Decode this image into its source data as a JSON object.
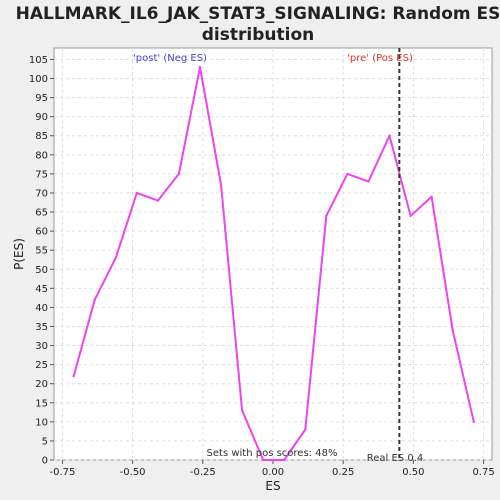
{
  "chart_data": {
    "type": "line",
    "title_lines": [
      "HALLMARK_IL6_JAK_STAT3_SIGNALING: Random ES",
      "distribution"
    ],
    "xlabel": "ES",
    "ylabel": "P(ES)",
    "xlim": [
      -0.78,
      0.78
    ],
    "ylim": [
      0,
      108
    ],
    "x_ticks": [
      -0.75,
      -0.5,
      -0.25,
      0.0,
      0.25,
      0.5,
      0.75
    ],
    "x_tick_labels": [
      "-0.75",
      "-0.50",
      "-0.25",
      "0.00",
      "0.25",
      "0.50",
      "0.75"
    ],
    "y_ticks": [
      0,
      5,
      10,
      15,
      20,
      25,
      30,
      35,
      40,
      45,
      50,
      55,
      60,
      65,
      70,
      75,
      80,
      85,
      90,
      95,
      100,
      105
    ],
    "y_tick_labels": [
      "0",
      "5",
      "10",
      "15",
      "20",
      "25",
      "30",
      "35",
      "40",
      "45",
      "50",
      "55",
      "60",
      "65",
      "70",
      "75",
      "80",
      "85",
      "90",
      "95",
      "100",
      "105"
    ],
    "grid": true,
    "series": [
      {
        "color": "#ee44ee",
        "x": [
          -0.71,
          -0.635,
          -0.56,
          -0.485,
          -0.41,
          -0.335,
          -0.26,
          -0.185,
          -0.11,
          -0.035,
          0.04,
          0.115,
          0.19,
          0.265,
          0.34,
          0.415,
          0.49,
          0.565,
          0.64,
          0.715
        ],
        "y": [
          22,
          42,
          53,
          70,
          68,
          75,
          103,
          72,
          13,
          0,
          0,
          8,
          64,
          75,
          73,
          85,
          64,
          69,
          34,
          10
        ]
      }
    ],
    "real_es": {
      "value": 0.45,
      "label": "Real ES 0.4"
    },
    "annotations": {
      "post": {
        "text": "'post' (Neg ES)",
        "color": "#4444cc"
      },
      "pre": {
        "text": "'pre' (Pos ES)",
        "color": "#dd3333"
      },
      "sets_pos": {
        "text": "Sets with pos scores: 48%",
        "color": "#333333"
      }
    }
  }
}
